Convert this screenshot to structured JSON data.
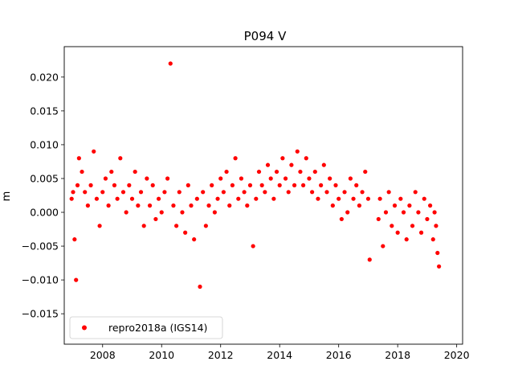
{
  "chart_data": {
    "type": "scatter",
    "title": "P094 V",
    "xlabel": "",
    "ylabel": "m",
    "xlim": [
      2006.7,
      2020.2
    ],
    "ylim": [
      -0.0195,
      0.0245
    ],
    "xticks": [
      2008,
      2010,
      2012,
      2014,
      2016,
      2018,
      2020
    ],
    "xtick_labels": [
      "2008",
      "2010",
      "2012",
      "2014",
      "2016",
      "2018",
      "2020"
    ],
    "yticks": [
      -0.015,
      -0.01,
      -0.005,
      0.0,
      0.005,
      0.01,
      0.015,
      0.02
    ],
    "ytick_labels": [
      "−0.015",
      "−0.010",
      "−0.005",
      "0.000",
      "0.005",
      "0.010",
      "0.015",
      "0.020"
    ],
    "grid": false,
    "legend_position": "lower-left",
    "series": [
      {
        "name": "repro2018a (IGS14)",
        "color": "#ff0000",
        "marker": "circle",
        "x": [
          2006.95,
          2007.0,
          2007.05,
          2007.1,
          2007.15,
          2007.2,
          2007.3,
          2007.4,
          2007.5,
          2007.6,
          2007.7,
          2007.8,
          2007.9,
          2008.0,
          2008.1,
          2008.2,
          2008.3,
          2008.4,
          2008.5,
          2008.6,
          2008.7,
          2008.8,
          2008.9,
          2009.0,
          2009.1,
          2009.2,
          2009.3,
          2009.4,
          2009.5,
          2009.6,
          2009.7,
          2009.8,
          2009.9,
          2010.0,
          2010.1,
          2010.2,
          2010.3,
          2010.4,
          2010.5,
          2010.6,
          2010.7,
          2010.8,
          2010.9,
          2011.0,
          2011.1,
          2011.2,
          2011.3,
          2011.4,
          2011.5,
          2011.6,
          2011.7,
          2011.8,
          2011.9,
          2012.0,
          2012.1,
          2012.2,
          2012.3,
          2012.4,
          2012.5,
          2012.6,
          2012.7,
          2012.8,
          2012.9,
          2013.0,
          2013.1,
          2013.2,
          2013.3,
          2013.4,
          2013.5,
          2013.6,
          2013.7,
          2013.8,
          2013.9,
          2014.0,
          2014.1,
          2014.2,
          2014.3,
          2014.4,
          2014.5,
          2014.6,
          2014.7,
          2014.8,
          2014.9,
          2015.0,
          2015.1,
          2015.2,
          2015.3,
          2015.4,
          2015.5,
          2015.6,
          2015.7,
          2015.8,
          2015.9,
          2016.0,
          2016.1,
          2016.2,
          2016.3,
          2016.4,
          2016.5,
          2016.6,
          2016.7,
          2016.8,
          2016.9,
          2017.0,
          2017.05,
          2017.35,
          2017.4,
          2017.5,
          2017.6,
          2017.7,
          2017.8,
          2017.9,
          2018.0,
          2018.1,
          2018.2,
          2018.3,
          2018.4,
          2018.5,
          2018.6,
          2018.7,
          2018.8,
          2018.9,
          2019.0,
          2019.1,
          2019.2,
          2019.25,
          2019.3,
          2019.35,
          2019.4
        ],
        "y": [
          0.002,
          0.003,
          -0.004,
          -0.01,
          0.004,
          0.008,
          0.006,
          0.003,
          0.001,
          0.004,
          0.009,
          0.002,
          -0.002,
          0.003,
          0.005,
          0.001,
          0.006,
          0.004,
          0.002,
          0.008,
          0.003,
          0.0,
          0.004,
          0.002,
          0.006,
          0.001,
          0.003,
          -0.002,
          0.005,
          0.001,
          0.004,
          -0.001,
          0.002,
          0.0,
          0.003,
          0.005,
          0.022,
          0.001,
          -0.002,
          0.003,
          0.0,
          -0.003,
          0.004,
          0.001,
          -0.004,
          0.002,
          -0.011,
          0.003,
          -0.002,
          0.001,
          0.004,
          0.0,
          0.002,
          0.005,
          0.003,
          0.006,
          0.001,
          0.004,
          0.008,
          0.002,
          0.005,
          0.003,
          0.001,
          0.004,
          -0.005,
          0.002,
          0.006,
          0.004,
          0.003,
          0.007,
          0.005,
          0.002,
          0.006,
          0.004,
          0.008,
          0.005,
          0.003,
          0.007,
          0.004,
          0.009,
          0.006,
          0.004,
          0.008,
          0.005,
          0.003,
          0.006,
          0.002,
          0.004,
          0.007,
          0.003,
          0.005,
          0.001,
          0.004,
          0.002,
          -0.001,
          0.003,
          0.0,
          0.005,
          0.002,
          0.004,
          0.001,
          0.003,
          0.006,
          0.002,
          -0.007,
          -0.001,
          0.002,
          -0.005,
          0.0,
          0.003,
          -0.002,
          0.001,
          -0.003,
          0.002,
          0.0,
          -0.004,
          0.001,
          -0.002,
          0.003,
          0.0,
          -0.003,
          0.002,
          -0.001,
          0.001,
          -0.004,
          0.0,
          -0.002,
          -0.006,
          -0.008
        ]
      }
    ]
  }
}
